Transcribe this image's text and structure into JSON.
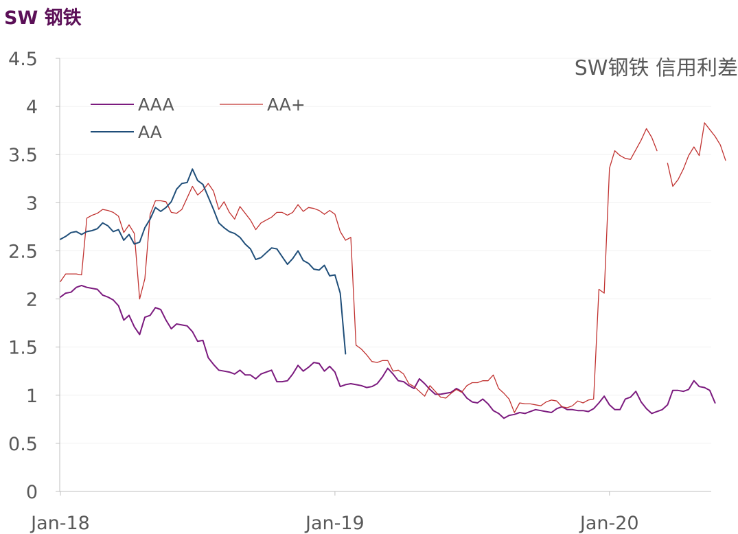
{
  "page_title": "SW 钢铁",
  "chart_data": {
    "type": "line",
    "title": "SW钢铁 信用利差",
    "xlabel": "",
    "ylabel": "",
    "ylim": [
      0,
      4.5
    ],
    "yticks": [
      "0",
      "0.5",
      "1",
      "1.5",
      "2",
      "2.5",
      "3",
      "3.5",
      "4",
      "4.5"
    ],
    "xticks": [
      {
        "label": "Jan-18",
        "t": 0
      },
      {
        "label": "Jan-19",
        "t": 52
      },
      {
        "label": "Jan-20",
        "t": 104
      }
    ],
    "x_range_weeks": [
      0,
      124
    ],
    "legend": [
      "AAA",
      "AA+",
      "AA"
    ],
    "series": [
      {
        "name": "AAA",
        "color": "#7b1a7e",
        "stroke_width": 2,
        "values": [
          2.02,
          2.06,
          2.07,
          2.12,
          2.14,
          2.12,
          2.11,
          2.1,
          2.04,
          2.02,
          1.99,
          1.93,
          1.78,
          1.83,
          1.71,
          1.63,
          1.81,
          1.83,
          1.91,
          1.89,
          1.78,
          1.69,
          1.74,
          1.73,
          1.72,
          1.66,
          1.56,
          1.57,
          1.39,
          1.32,
          1.26,
          1.25,
          1.24,
          1.22,
          1.26,
          1.21,
          1.21,
          1.17,
          1.22,
          1.24,
          1.26,
          1.14,
          1.14,
          1.15,
          1.22,
          1.31,
          1.25,
          1.29,
          1.34,
          1.33,
          1.25,
          1.3,
          1.24,
          1.09,
          1.11,
          1.12,
          1.11,
          1.1,
          1.08,
          1.09,
          1.12,
          1.19,
          1.28,
          1.22,
          1.15,
          1.14,
          1.1,
          1.07,
          1.17,
          1.12,
          1.06,
          1.01,
          1.01,
          1.02,
          1.03,
          1.07,
          1.04,
          0.97,
          0.93,
          0.92,
          0.96,
          0.91,
          0.84,
          0.81,
          0.76,
          0.79,
          0.8,
          0.82,
          0.81,
          0.83,
          0.85,
          0.84,
          0.83,
          0.82,
          0.86,
          0.88,
          0.85,
          0.85,
          0.84,
          0.84,
          0.83,
          0.86,
          0.92,
          0.99,
          0.9,
          0.85,
          0.85,
          0.96,
          0.98,
          1.04,
          0.93,
          0.86,
          0.81,
          0.83,
          0.85,
          0.9,
          1.05,
          1.05,
          1.04,
          1.06,
          1.15,
          1.09,
          1.08,
          1.05,
          0.92
        ]
      },
      {
        "name": "AA+",
        "color": "#c0312f",
        "stroke_width": 1.3,
        "values": [
          2.18,
          2.26,
          2.26,
          2.26,
          2.25,
          2.84,
          2.87,
          2.89,
          2.93,
          2.92,
          2.9,
          2.86,
          2.69,
          2.77,
          2.68,
          2.0,
          2.21,
          2.88,
          3.02,
          3.02,
          3.01,
          2.9,
          2.89,
          2.93,
          3.05,
          3.17,
          3.08,
          3.13,
          3.2,
          3.12,
          2.93,
          3.01,
          2.9,
          2.83,
          2.96,
          2.89,
          2.82,
          2.72,
          2.79,
          2.82,
          2.85,
          2.9,
          2.9,
          2.87,
          2.9,
          2.98,
          2.91,
          2.95,
          2.94,
          2.92,
          2.88,
          2.92,
          2.88,
          2.7,
          2.61,
          2.64,
          1.52,
          1.48,
          1.42,
          1.35,
          1.34,
          1.36,
          1.36,
          1.25,
          1.26,
          1.22,
          1.12,
          1.09,
          1.04,
          0.99,
          1.1,
          1.04,
          0.98,
          0.97,
          1.02,
          1.06,
          1.03,
          1.1,
          1.13,
          1.13,
          1.15,
          1.15,
          1.21,
          1.07,
          1.02,
          0.96,
          0.82,
          0.92,
          0.91,
          0.91,
          0.9,
          0.89,
          0.93,
          0.95,
          0.94,
          0.88,
          0.87,
          0.89,
          0.94,
          0.92,
          0.95,
          0.96,
          2.1,
          2.06,
          3.36,
          3.54,
          3.49,
          3.46,
          3.45,
          3.55,
          3.65,
          3.77,
          3.68,
          3.54,
          null,
          3.41,
          3.17,
          3.24,
          3.35,
          3.49,
          3.58,
          3.49,
          3.83,
          3.76,
          3.69,
          3.6,
          3.44
        ]
      },
      {
        "name": "AA",
        "color": "#1f4e79",
        "stroke_width": 2,
        "values": [
          2.62,
          2.65,
          2.69,
          2.7,
          2.67,
          2.7,
          2.71,
          2.73,
          2.79,
          2.76,
          2.7,
          2.72,
          2.61,
          2.67,
          2.57,
          2.59,
          2.74,
          2.83,
          2.95,
          2.91,
          2.95,
          3.01,
          3.14,
          3.2,
          3.21,
          3.35,
          3.23,
          3.19,
          3.06,
          2.93,
          2.79,
          2.74,
          2.7,
          2.68,
          2.64,
          2.57,
          2.52,
          2.41,
          2.43,
          2.48,
          2.53,
          2.52,
          2.44,
          2.36,
          2.42,
          2.5,
          2.4,
          2.37,
          2.31,
          2.3,
          2.35,
          2.24,
          2.25,
          2.06,
          1.43
        ]
      }
    ]
  }
}
